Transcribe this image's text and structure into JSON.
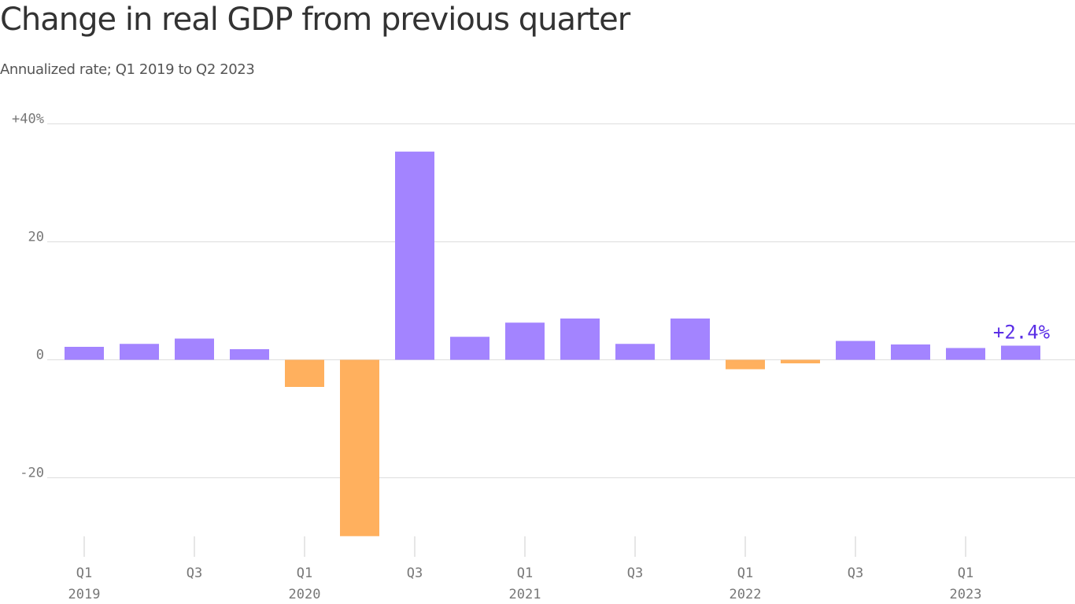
{
  "title": "Change in real GDP from previous quarter",
  "subtitle": "Annualized rate; Q1 2019 to Q2 2023",
  "chart_data": {
    "type": "bar",
    "title": "Change in real GDP from previous quarter",
    "subtitle": "Annualized rate; Q1 2019 to Q2 2023",
    "xlabel": "",
    "ylabel": "",
    "ylim": [
      -30,
      40
    ],
    "y_ticks": [
      {
        "value": 40,
        "label": "+40%"
      },
      {
        "value": 20,
        "label": "20"
      },
      {
        "value": 0,
        "label": "0"
      },
      {
        "value": -20,
        "label": "-20"
      }
    ],
    "grid": true,
    "categories": [
      "Q1 2019",
      "Q2 2019",
      "Q3 2019",
      "Q4 2019",
      "Q1 2020",
      "Q2 2020",
      "Q3 2020",
      "Q4 2020",
      "Q1 2021",
      "Q2 2021",
      "Q3 2021",
      "Q4 2021",
      "Q1 2022",
      "Q2 2022",
      "Q3 2022",
      "Q4 2022",
      "Q1 2023",
      "Q2 2023"
    ],
    "values": [
      2.2,
      2.7,
      3.6,
      1.8,
      -4.6,
      -29.9,
      35.3,
      3.9,
      6.3,
      7.0,
      2.7,
      7.0,
      -1.6,
      -0.6,
      3.2,
      2.6,
      2.0,
      2.4
    ],
    "x_ticks": [
      {
        "index": 0,
        "quarter": "Q1",
        "year": "2019"
      },
      {
        "index": 2,
        "quarter": "Q3",
        "year": ""
      },
      {
        "index": 4,
        "quarter": "Q1",
        "year": "2020"
      },
      {
        "index": 6,
        "quarter": "Q3",
        "year": ""
      },
      {
        "index": 8,
        "quarter": "Q1",
        "year": "2021"
      },
      {
        "index": 10,
        "quarter": "Q3",
        "year": ""
      },
      {
        "index": 12,
        "quarter": "Q1",
        "year": "2022"
      },
      {
        "index": 14,
        "quarter": "Q3",
        "year": ""
      },
      {
        "index": 16,
        "quarter": "Q1",
        "year": "2023"
      }
    ],
    "annotations": [
      {
        "index": 17,
        "text": "+2.4%"
      }
    ],
    "colors": {
      "positive": "#a384ff",
      "negative": "#ffb05e",
      "annotation": "#5a2ee6",
      "grid": "#dddddd",
      "tick": "#777777"
    }
  }
}
